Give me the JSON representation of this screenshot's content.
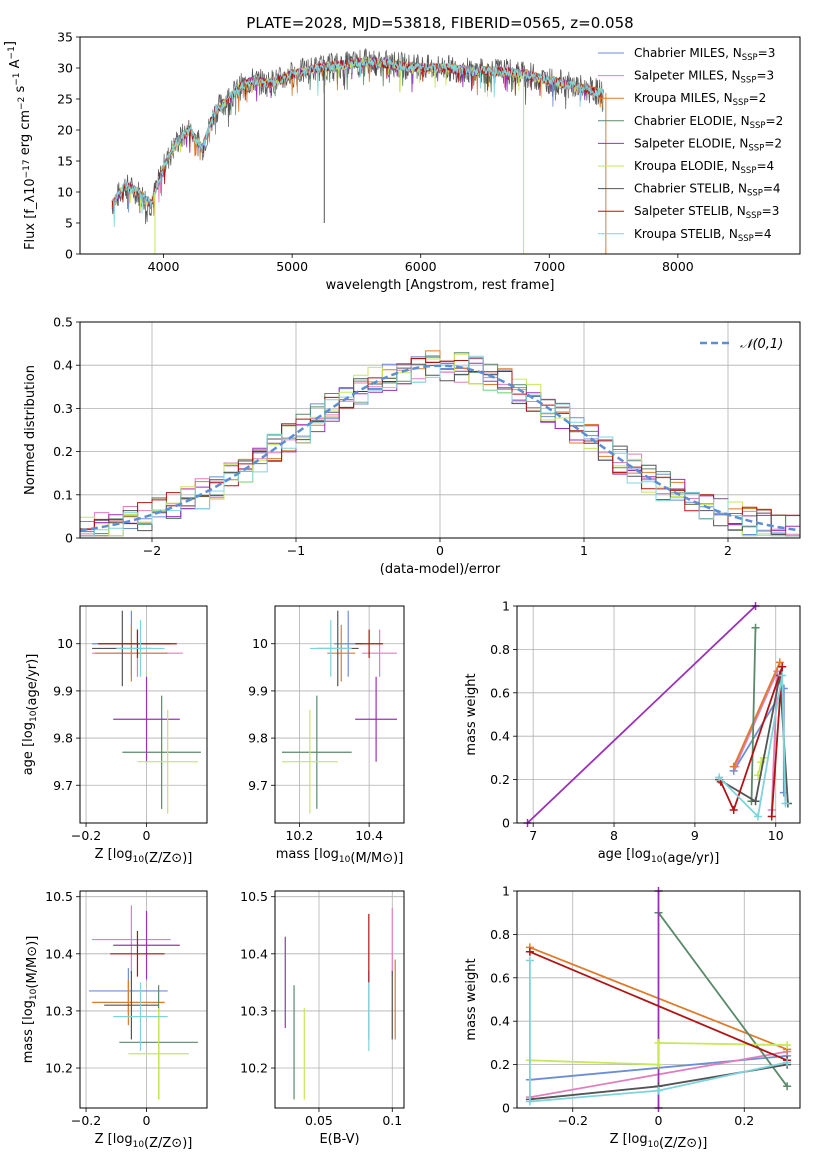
{
  "page_title": "PLATE=2028, MJD=53818, FIBERID=0565, z=0.058",
  "colors": {
    "chabrier_miles": "#6b8fd6",
    "salpeter_miles": "#e07fbe",
    "kroupa_miles": "#e07b2b",
    "chabrier_elodie": "#5a8a6a",
    "salpeter_elodie": "#9b30b8",
    "kroupa_elodie": "#c6e85a",
    "chabrier_stelib": "#555555",
    "salpeter_stelib": "#b01515",
    "kroupa_stelib": "#7fd4dc",
    "normal_curve": "#5a8fd6"
  },
  "chart_data": [
    {
      "id": "spectrum",
      "type": "line",
      "xlabel": "wavelength [Angstrom, rest frame]",
      "ylabel": "Flux [f_λ10^−17 erg cm^−2 s^−1 A^−1]",
      "xlim": [
        3350,
        8950
      ],
      "ylim": [
        0,
        35
      ],
      "xticks": [
        4000,
        5000,
        6000,
        7000,
        8000
      ],
      "yticks": [
        0,
        5,
        10,
        15,
        20,
        25,
        30,
        35
      ],
      "grid": false,
      "legend_position": "right",
      "legend": [
        {
          "name": "Chabrier MILES, N",
          "sub": "SSP",
          "suffix": "=3",
          "color": "#6b8fd6"
        },
        {
          "name": "Salpeter MILES, N",
          "sub": "SSP",
          "suffix": "=3",
          "color": "#e07fbe"
        },
        {
          "name": "Kroupa MILES, N",
          "sub": "SSP",
          "suffix": "=2",
          "color": "#e07b2b"
        },
        {
          "name": "Chabrier ELODIE, N",
          "sub": "SSP",
          "suffix": "=2",
          "color": "#5a8a6a"
        },
        {
          "name": "Salpeter ELODIE, N",
          "sub": "SSP",
          "suffix": "=2",
          "color": "#9b30b8"
        },
        {
          "name": "Kroupa ELODIE, N",
          "sub": "SSP",
          "suffix": "=4",
          "color": "#c6e85a"
        },
        {
          "name": "Chabrier STELIB, N",
          "sub": "SSP",
          "suffix": "=4",
          "color": "#555555"
        },
        {
          "name": "Salpeter STELIB, N",
          "sub": "SSP",
          "suffix": "=3",
          "color": "#b01515"
        },
        {
          "name": "Kroupa STELIB, N",
          "sub": "SSP",
          "suffix": "=4",
          "color": "#7fd4dc"
        }
      ],
      "continuum": {
        "x": [
          3600,
          3700,
          3800,
          3900,
          4000,
          4100,
          4200,
          4300,
          4400,
          4500,
          4600,
          4700,
          4800,
          4900,
          5000,
          5200,
          5400,
          5600,
          5800,
          6000,
          6200,
          6400,
          6600,
          6800,
          7000,
          7200,
          7400
        ],
        "y": [
          8,
          11,
          10,
          8,
          14,
          18,
          20,
          17,
          23,
          25,
          27,
          28,
          27.5,
          28,
          29,
          30,
          30.5,
          31,
          30.5,
          30,
          30,
          29.5,
          29.5,
          29,
          28,
          27,
          26
        ]
      },
      "spikes": [
        {
          "x": 3933,
          "y": 0,
          "color": "#c6e85a"
        },
        {
          "x": 5250,
          "y": 5,
          "color": "#555555"
        },
        {
          "x": 6800,
          "y": 0,
          "color": "#c6e85a"
        },
        {
          "x": 7440,
          "y": 0,
          "color": "#e07b2b"
        }
      ]
    },
    {
      "id": "residuals",
      "type": "line",
      "xlabel": "(data-model)/error",
      "ylabel": "Normed distribution",
      "xlim": [
        -2.5,
        2.5
      ],
      "ylim": [
        0,
        0.5
      ],
      "xticks": [
        -2,
        -1,
        0,
        1,
        2
      ],
      "yticks": [
        0.0,
        0.1,
        0.2,
        0.3,
        0.4,
        0.5
      ],
      "grid": true,
      "legend_position": "top-right",
      "legend": [
        {
          "name": "𝒩(0,1)",
          "color": "#5a8fd6",
          "style": "dashed"
        }
      ]
    },
    {
      "id": "age-vs-z",
      "type": "scatter",
      "xlabel": "Z [log10(Z/Z⊙)]",
      "ylabel": "age  [log10(age/yr)]",
      "xlim": [
        -0.22,
        0.2
      ],
      "ylim": [
        9.62,
        10.08
      ],
      "xticks": [
        -0.2,
        0.0
      ],
      "yticks": [
        9.7,
        9.8,
        9.9,
        10.0
      ],
      "grid": true,
      "points": [
        {
          "x": -0.05,
          "y": 10.0,
          "xerr": 0.13,
          "yerr": 0.07,
          "color": "#6b8fd6"
        },
        {
          "x": -0.03,
          "y": 9.98,
          "xerr": 0.15,
          "yerr": 0.05,
          "color": "#e07fbe"
        },
        {
          "x": -0.05,
          "y": 9.98,
          "xerr": 0.12,
          "yerr": 0.06,
          "color": "#e07b2b"
        },
        {
          "x": 0.05,
          "y": 9.77,
          "xerr": 0.13,
          "yerr": 0.12,
          "color": "#5a8a6a"
        },
        {
          "x": 0.0,
          "y": 9.84,
          "xerr": 0.11,
          "yerr": 0.09,
          "color": "#9b30b8"
        },
        {
          "x": 0.07,
          "y": 9.75,
          "xerr": 0.1,
          "yerr": 0.11,
          "color": "#c6e85a"
        },
        {
          "x": -0.08,
          "y": 9.99,
          "xerr": 0.1,
          "yerr": 0.08,
          "color": "#555555"
        },
        {
          "x": -0.03,
          "y": 10.0,
          "xerr": 0.13,
          "yerr": 0.03,
          "color": "#b01515"
        },
        {
          "x": -0.02,
          "y": 9.99,
          "xerr": 0.08,
          "yerr": 0.06,
          "color": "#7fd4dc"
        }
      ]
    },
    {
      "id": "age-vs-mass",
      "type": "scatter",
      "xlabel": "mass [log10(M/M⊙)]",
      "ylabel": "",
      "xlim": [
        10.13,
        10.5
      ],
      "ylim": [
        9.62,
        10.08
      ],
      "xticks": [
        10.2,
        10.4
      ],
      "yticks": [
        9.7,
        9.8,
        9.9,
        10.0
      ],
      "grid": true,
      "points": [
        {
          "x": 10.34,
          "y": 10.0,
          "xerr": 0.04,
          "yerr": 0.07,
          "color": "#6b8fd6"
        },
        {
          "x": 10.43,
          "y": 9.98,
          "xerr": 0.05,
          "yerr": 0.05,
          "color": "#e07fbe"
        },
        {
          "x": 10.32,
          "y": 9.98,
          "xerr": 0.04,
          "yerr": 0.06,
          "color": "#e07b2b"
        },
        {
          "x": 10.25,
          "y": 9.77,
          "xerr": 0.1,
          "yerr": 0.12,
          "color": "#5a8a6a"
        },
        {
          "x": 10.42,
          "y": 9.84,
          "xerr": 0.06,
          "yerr": 0.09,
          "color": "#9b30b8"
        },
        {
          "x": 10.23,
          "y": 9.75,
          "xerr": 0.08,
          "yerr": 0.11,
          "color": "#c6e85a"
        },
        {
          "x": 10.31,
          "y": 9.99,
          "xerr": 0.06,
          "yerr": 0.08,
          "color": "#555555"
        },
        {
          "x": 10.4,
          "y": 10.0,
          "xerr": 0.04,
          "yerr": 0.03,
          "color": "#b01515"
        },
        {
          "x": 10.29,
          "y": 9.99,
          "xerr": 0.06,
          "yerr": 0.06,
          "color": "#7fd4dc"
        }
      ]
    },
    {
      "id": "weight-vs-age",
      "type": "line",
      "xlabel": "age  [log10(age/yr)]",
      "ylabel": "mass weight",
      "xlim": [
        6.8,
        10.3
      ],
      "ylim": [
        0,
        1.0
      ],
      "xticks": [
        7,
        8,
        9,
        10
      ],
      "yticks": [
        0.0,
        0.2,
        0.4,
        0.6,
        0.8,
        1.0
      ],
      "grid": true,
      "series": [
        {
          "color": "#6b8fd6",
          "x": [
            9.48,
            10.1,
            10.1
          ],
          "y": [
            0.24,
            0.62,
            0.14
          ]
        },
        {
          "color": "#e07fbe",
          "x": [
            9.5,
            10.02,
            9.95
          ],
          "y": [
            0.26,
            0.7,
            0.06
          ]
        },
        {
          "color": "#e07b2b",
          "x": [
            9.48,
            10.05
          ],
          "y": [
            0.26,
            0.74
          ]
        },
        {
          "color": "#5a8a6a",
          "x": [
            9.75,
            9.7
          ],
          "y": [
            0.9,
            0.1
          ]
        },
        {
          "color": "#9b30b8",
          "x": [
            6.93,
            9.75
          ],
          "y": [
            0.0,
            1.0
          ]
        },
        {
          "color": "#c6e85a",
          "x": [
            9.78,
            9.82,
            9.85
          ],
          "y": [
            0.22,
            0.28,
            0.3
          ]
        },
        {
          "color": "#555555",
          "x": [
            9.3,
            9.75,
            10.05,
            10.15
          ],
          "y": [
            0.2,
            0.1,
            0.68,
            0.09
          ]
        },
        {
          "color": "#b01515",
          "x": [
            9.32,
            9.48,
            10.08,
            9.95
          ],
          "y": [
            0.19,
            0.06,
            0.72,
            0.03
          ]
        },
        {
          "color": "#7fd4dc",
          "x": [
            9.3,
            9.78,
            10.08,
            10.12
          ],
          "y": [
            0.21,
            0.03,
            0.68,
            0.09
          ]
        }
      ]
    },
    {
      "id": "mass-vs-z",
      "type": "scatter",
      "xlabel": "Z [log10(Z/Z⊙)]",
      "ylabel": "mass [log10(M/M⊙)]",
      "xlim": [
        -0.22,
        0.2
      ],
      "ylim": [
        10.13,
        10.51
      ],
      "xticks": [
        -0.2,
        0.0
      ],
      "yticks": [
        10.2,
        10.3,
        10.4,
        10.5
      ],
      "grid": true,
      "points": [
        {
          "x": -0.06,
          "y": 10.335,
          "xerr": 0.13,
          "yerr": 0.04,
          "color": "#6b8fd6"
        },
        {
          "x": -0.05,
          "y": 10.425,
          "xerr": 0.13,
          "yerr": 0.06,
          "color": "#e07fbe"
        },
        {
          "x": -0.06,
          "y": 10.315,
          "xerr": 0.12,
          "yerr": 0.04,
          "color": "#e07b2b"
        },
        {
          "x": 0.04,
          "y": 10.245,
          "xerr": 0.13,
          "yerr": 0.1,
          "color": "#5a8a6a"
        },
        {
          "x": 0.0,
          "y": 10.415,
          "xerr": 0.11,
          "yerr": 0.06,
          "color": "#9b30b8"
        },
        {
          "x": 0.04,
          "y": 10.225,
          "xerr": 0.1,
          "yerr": 0.08,
          "color": "#c6e85a"
        },
        {
          "x": -0.05,
          "y": 10.31,
          "xerr": 0.09,
          "yerr": 0.06,
          "color": "#555555"
        },
        {
          "x": -0.03,
          "y": 10.4,
          "xerr": 0.09,
          "yerr": 0.04,
          "color": "#b01515"
        },
        {
          "x": -0.02,
          "y": 10.29,
          "xerr": 0.09,
          "yerr": 0.06,
          "color": "#7fd4dc"
        }
      ]
    },
    {
      "id": "mass-vs-ebv",
      "type": "scatter",
      "xlabel": "E(B-V)",
      "ylabel": "",
      "xlim": [
        0.02,
        0.108
      ],
      "ylim": [
        10.13,
        10.51
      ],
      "xticks": [
        0.05,
        0.1
      ],
      "yticks": [
        10.2,
        10.3,
        10.4,
        10.5
      ],
      "grid": true,
      "points": [
        {
          "x": 0.084,
          "y": 10.31,
          "xerr": 0,
          "yerr": 0.06,
          "color": "#6b8fd6"
        },
        {
          "x": 0.1,
          "y": 10.42,
          "xerr": 0,
          "yerr": 0.06,
          "color": "#e07fbe"
        },
        {
          "x": 0.102,
          "y": 10.32,
          "xerr": 0,
          "yerr": 0.07,
          "color": "#e07b2b"
        },
        {
          "x": 0.033,
          "y": 10.245,
          "xerr": 0,
          "yerr": 0.1,
          "color": "#5a8a6a"
        },
        {
          "x": 0.027,
          "y": 10.35,
          "xerr": 0,
          "yerr": 0.08,
          "color": "#9b30b8"
        },
        {
          "x": 0.04,
          "y": 10.225,
          "xerr": 0,
          "yerr": 0.08,
          "color": "#c6e85a"
        },
        {
          "x": 0.1,
          "y": 10.31,
          "xerr": 0,
          "yerr": 0.06,
          "color": "#555555"
        },
        {
          "x": 0.084,
          "y": 10.41,
          "xerr": 0,
          "yerr": 0.06,
          "color": "#b01515"
        },
        {
          "x": 0.084,
          "y": 10.29,
          "xerr": 0,
          "yerr": 0.06,
          "color": "#7fd4dc"
        }
      ]
    },
    {
      "id": "weight-vs-z",
      "type": "line",
      "xlabel": "Z [log10(Z/Z⊙)]",
      "ylabel": "mass weight",
      "xlim": [
        -0.33,
        0.33
      ],
      "ylim": [
        0,
        1.0
      ],
      "xticks": [
        -0.2,
        0.0,
        0.2
      ],
      "yticks": [
        0.0,
        0.2,
        0.4,
        0.6,
        0.8,
        1.0
      ],
      "grid": true,
      "series": [
        {
          "color": "#6b8fd6",
          "x": [
            -0.3,
            0.3
          ],
          "y": [
            0.13,
            0.24
          ]
        },
        {
          "color": "#e07fbe",
          "x": [
            -0.3,
            0.3
          ],
          "y": [
            0.05,
            0.26
          ]
        },
        {
          "color": "#e07b2b",
          "x": [
            -0.3,
            0.3
          ],
          "y": [
            0.74,
            0.27
          ]
        },
        {
          "color": "#5a8a6a",
          "x": [
            0.0,
            0.3
          ],
          "y": [
            0.9,
            0.1
          ]
        },
        {
          "color": "#9b30b8",
          "x": [
            0.0,
            0.0
          ],
          "y": [
            0.0,
            1.0
          ]
        },
        {
          "color": "#c6e85a",
          "x": [
            -0.3,
            0.0,
            0.0,
            0.3
          ],
          "y": [
            0.22,
            0.2,
            0.3,
            0.29
          ]
        },
        {
          "color": "#555555",
          "x": [
            -0.3,
            0.0,
            0.3
          ],
          "y": [
            0.04,
            0.1,
            0.2
          ]
        },
        {
          "color": "#b01515",
          "x": [
            -0.3,
            0.3
          ],
          "y": [
            0.72,
            0.22
          ]
        },
        {
          "color": "#7fd4dc",
          "x": [
            -0.3,
            -0.3,
            0.0,
            0.3
          ],
          "y": [
            0.68,
            0.03,
            0.08,
            0.21
          ]
        }
      ]
    }
  ]
}
